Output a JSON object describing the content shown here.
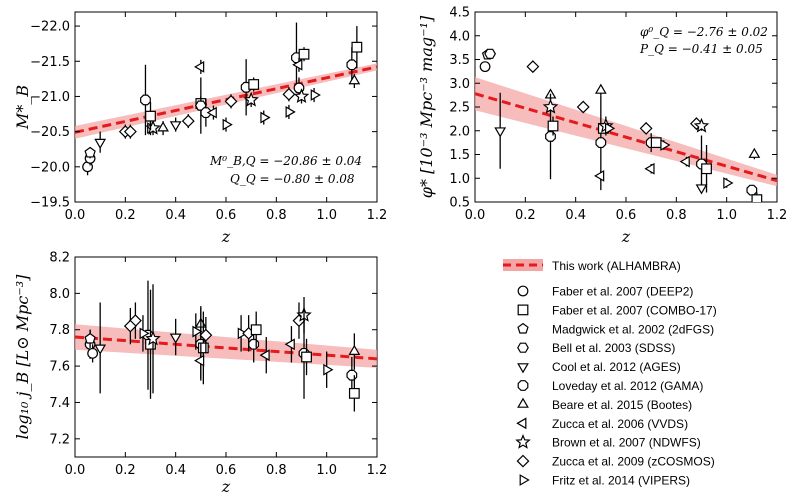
{
  "colors": {
    "fit_line": "#e41a1c",
    "band": "#f4a6a6",
    "markers": "#000000"
  },
  "chart_data": [
    {
      "type": "scatter",
      "xlabel": "z",
      "ylabel": "M*_B",
      "xlim": [
        0.0,
        1.2
      ],
      "ylim": [
        -19.5,
        -22.2
      ],
      "inverted_y": true,
      "x_ticks": [
        "0.0",
        "0.2",
        "0.4",
        "0.6",
        "0.8",
        "1.0",
        "1.2"
      ],
      "y_ticks": [
        "-19.5",
        "-20.0",
        "-20.5",
        "-21.0",
        "-21.5",
        "-22.0"
      ],
      "annotations": [
        "M⁰_B,Q = −20.86 ± 0.04",
        "Q_Q = −0.80 ± 0.08"
      ],
      "fit": {
        "x": [
          0.0,
          1.2
        ],
        "y": [
          -20.49,
          -21.42
        ],
        "band_halfwidth": [
          0.09,
          0.05
        ]
      },
      "points": [
        {
          "s": "faber_deep2",
          "x": 0.05,
          "y": -20.0,
          "e": 0.12
        },
        {
          "s": "faber_deep2",
          "x": 0.06,
          "y": -20.12,
          "e": 0.1
        },
        {
          "s": "madgwick",
          "x": 0.06,
          "y": -20.2,
          "e": 0.08
        },
        {
          "s": "cool",
          "x": 0.1,
          "y": -20.35,
          "e": 0.15
        },
        {
          "s": "zucca2009",
          "x": 0.2,
          "y": -20.5,
          "e": 0.1
        },
        {
          "s": "zucca2009",
          "x": 0.22,
          "y": -20.5,
          "e": 0.1
        },
        {
          "s": "loveday",
          "x": 0.28,
          "y": -20.95,
          "e": 0.5
        },
        {
          "s": "fritz",
          "x": 0.3,
          "y": -20.55,
          "e": 0.1
        },
        {
          "s": "brown",
          "x": 0.31,
          "y": -20.55,
          "e": 0.1
        },
        {
          "s": "faber_combo17",
          "x": 0.3,
          "y": -20.72,
          "e": 0.2
        },
        {
          "s": "beare",
          "x": 0.35,
          "y": -20.55,
          "e": 0.1
        },
        {
          "s": "cool",
          "x": 0.4,
          "y": -20.6,
          "e": 0.1
        },
        {
          "s": "zucca2006",
          "x": 0.5,
          "y": -21.42,
          "e": 0.1
        },
        {
          "s": "faber_combo17",
          "x": 0.5,
          "y": -20.9,
          "e": 0.1
        },
        {
          "s": "bell",
          "x": 0.5,
          "y": -20.87,
          "e": 0.4
        },
        {
          "s": "loveday",
          "x": 0.52,
          "y": -20.77,
          "e": 0.2
        },
        {
          "s": "zucca2009",
          "x": 0.45,
          "y": -20.65,
          "e": 0.1
        },
        {
          "s": "zucca2006",
          "x": 0.55,
          "y": -20.77,
          "e": 0.1
        },
        {
          "s": "fritz",
          "x": 0.6,
          "y": -20.6,
          "e": 0.1
        },
        {
          "s": "loveday",
          "x": 0.68,
          "y": -21.13,
          "e": 0.4
        },
        {
          "s": "faber_combo17",
          "x": 0.71,
          "y": -21.17,
          "e": 0.1
        },
        {
          "s": "zucca2009",
          "x": 0.62,
          "y": -20.93,
          "e": 0.1
        },
        {
          "s": "brown",
          "x": 0.7,
          "y": -20.95,
          "e": 0.1
        },
        {
          "s": "fritz",
          "x": 0.75,
          "y": -20.7,
          "e": 0.1
        },
        {
          "s": "loveday",
          "x": 0.88,
          "y": -21.55,
          "e": 0.5
        },
        {
          "s": "faber_combo17",
          "x": 0.91,
          "y": -21.6,
          "e": 0.1
        },
        {
          "s": "faber_deep2",
          "x": 0.89,
          "y": -21.12,
          "e": 0.15
        },
        {
          "s": "zucca2006",
          "x": 0.89,
          "y": -21.45,
          "e": 0.1
        },
        {
          "s": "zucca2009",
          "x": 0.85,
          "y": -21.03,
          "e": 0.1
        },
        {
          "s": "brown",
          "x": 0.9,
          "y": -21.0,
          "e": 0.1
        },
        {
          "s": "fritz",
          "x": 0.85,
          "y": -20.78,
          "e": 0.1
        },
        {
          "s": "fritz",
          "x": 0.95,
          "y": -21.02,
          "e": 0.1
        },
        {
          "s": "loveday",
          "x": 1.1,
          "y": -21.45,
          "e": 0.25
        },
        {
          "s": "faber_combo17",
          "x": 1.12,
          "y": -21.7,
          "e": 0.3
        },
        {
          "s": "beare",
          "x": 1.11,
          "y": -21.22,
          "e": 0.1
        }
      ]
    },
    {
      "type": "scatter",
      "xlabel": "z",
      "ylabel": "φ* [10⁻³ Mpc⁻³ mag⁻¹]",
      "xlim": [
        0.0,
        1.2
      ],
      "ylim": [
        0.5,
        4.5
      ],
      "x_ticks": [
        "0.0",
        "0.2",
        "0.4",
        "0.6",
        "0.8",
        "1.0",
        "1.2"
      ],
      "y_ticks": [
        "0.5",
        "1.0",
        "1.5",
        "2.0",
        "2.5",
        "3.0",
        "3.5",
        "4.0",
        "4.5"
      ],
      "annotations": [
        "φ⁰_Q = −2.76 ± 0.02",
        "P_Q = −0.41 ± 0.05"
      ],
      "fit": {
        "x": [
          0.0,
          1.2
        ],
        "y": [
          2.78,
          0.95
        ],
        "band_halfwidth": [
          0.35,
          0.12
        ]
      },
      "points": [
        {
          "s": "faber_deep2",
          "x": 0.04,
          "y": 3.35,
          "e": 0.1
        },
        {
          "s": "madgwick",
          "x": 0.05,
          "y": 3.6,
          "e": 0.1
        },
        {
          "s": "bell",
          "x": 0.06,
          "y": 3.62,
          "e": 0.05
        },
        {
          "s": "cool",
          "x": 0.1,
          "y": 2.0,
          "e": 0.8
        },
        {
          "s": "zucca2009",
          "x": 0.23,
          "y": 3.35,
          "e": 0.1
        },
        {
          "s": "beare",
          "x": 0.3,
          "y": 2.75,
          "e": 0.1
        },
        {
          "s": "loveday",
          "x": 0.3,
          "y": 1.88,
          "e": 0.9
        },
        {
          "s": "faber_combo17",
          "x": 0.31,
          "y": 2.1,
          "e": 0.2
        },
        {
          "s": "brown",
          "x": 0.3,
          "y": 2.5,
          "e": 0.1
        },
        {
          "s": "zucca2009",
          "x": 0.43,
          "y": 2.5,
          "e": 0.1
        },
        {
          "s": "beare",
          "x": 0.5,
          "y": 2.85,
          "e": 0.1
        },
        {
          "s": "loveday",
          "x": 0.5,
          "y": 1.75,
          "e": 1.0
        },
        {
          "s": "faber_combo17",
          "x": 0.51,
          "y": 2.05,
          "e": 0.1
        },
        {
          "s": "zucca2006",
          "x": 0.5,
          "y": 1.05,
          "e": 0.1
        },
        {
          "s": "brown",
          "x": 0.52,
          "y": 2.1,
          "e": 0.2
        },
        {
          "s": "fritz",
          "x": 0.53,
          "y": 2.05,
          "e": 0.1
        },
        {
          "s": "loveday",
          "x": 0.7,
          "y": 1.75,
          "e": 0.2
        },
        {
          "s": "zucca2009",
          "x": 0.68,
          "y": 2.05,
          "e": 0.1
        },
        {
          "s": "faber_combo17",
          "x": 0.72,
          "y": 1.75,
          "e": 0.1
        },
        {
          "s": "zucca2006",
          "x": 0.7,
          "y": 1.2,
          "e": 0.1
        },
        {
          "s": "fritz",
          "x": 0.75,
          "y": 1.7,
          "e": 0.1
        },
        {
          "s": "zucca2009",
          "x": 0.88,
          "y": 2.15,
          "e": 0.1
        },
        {
          "s": "brown",
          "x": 0.9,
          "y": 2.1,
          "e": 0.1
        },
        {
          "s": "loveday",
          "x": 0.9,
          "y": 1.3,
          "e": 0.6
        },
        {
          "s": "faber_combo17",
          "x": 0.92,
          "y": 1.2,
          "e": 0.5
        },
        {
          "s": "zucca2006",
          "x": 0.84,
          "y": 1.35,
          "e": 0.1
        },
        {
          "s": "cool",
          "x": 0.9,
          "y": 0.8,
          "e": 0.1
        },
        {
          "s": "loveday",
          "x": 1.1,
          "y": 0.75,
          "e": 0.1
        },
        {
          "s": "faber_combo17",
          "x": 1.12,
          "y": 0.55,
          "e": 0.15
        },
        {
          "s": "beare",
          "x": 1.11,
          "y": 1.5,
          "e": 0.1
        },
        {
          "s": "fritz",
          "x": 1.0,
          "y": 0.9,
          "e": 0.1
        }
      ]
    },
    {
      "type": "scatter",
      "xlabel": "z",
      "ylabel": "log₁₀ j_B [L⊙ Mpc⁻³]",
      "xlim": [
        0.0,
        1.2
      ],
      "ylim": [
        7.1,
        8.2
      ],
      "x_ticks": [
        "0.0",
        "0.2",
        "0.4",
        "0.6",
        "0.8",
        "1.0",
        "1.2"
      ],
      "y_ticks": [
        "7.2",
        "7.4",
        "7.6",
        "7.8",
        "8.0",
        "8.2"
      ],
      "fit": {
        "x": [
          0.0,
          1.2
        ],
        "y": [
          7.76,
          7.64
        ],
        "band_halfwidth": [
          0.07,
          0.05
        ]
      },
      "points": [
        {
          "s": "faber_deep2",
          "x": 0.06,
          "y": 7.72,
          "e": 0.08
        },
        {
          "s": "faber_deep2",
          "x": 0.07,
          "y": 7.67,
          "e": 0.05
        },
        {
          "s": "madgwick",
          "x": 0.06,
          "y": 7.75,
          "e": 0.05
        },
        {
          "s": "cool",
          "x": 0.1,
          "y": 7.7,
          "e": 0.25
        },
        {
          "s": "zucca2009",
          "x": 0.24,
          "y": 7.85,
          "e": 0.1
        },
        {
          "s": "zucca2009",
          "x": 0.22,
          "y": 7.82,
          "e": 0.1
        },
        {
          "s": "loveday",
          "x": 0.29,
          "y": 7.77,
          "e": 0.3
        },
        {
          "s": "faber_combo17",
          "x": 0.3,
          "y": 7.72,
          "e": 0.3
        },
        {
          "s": "brown",
          "x": 0.31,
          "y": 7.75,
          "e": 0.3
        },
        {
          "s": "fritz",
          "x": 0.27,
          "y": 7.78,
          "e": 0.1
        },
        {
          "s": "cool",
          "x": 0.4,
          "y": 7.76,
          "e": 0.1
        },
        {
          "s": "beare",
          "x": 0.5,
          "y": 7.83,
          "e": 0.1
        },
        {
          "s": "loveday",
          "x": 0.5,
          "y": 7.72,
          "e": 0.2
        },
        {
          "s": "faber_combo17",
          "x": 0.51,
          "y": 7.7,
          "e": 0.2
        },
        {
          "s": "zucca2006",
          "x": 0.5,
          "y": 7.63,
          "e": 0.1
        },
        {
          "s": "zucca2009",
          "x": 0.52,
          "y": 7.77,
          "e": 0.1
        },
        {
          "s": "fritz",
          "x": 0.48,
          "y": 7.79,
          "e": 0.1
        },
        {
          "s": "fritz",
          "x": 0.66,
          "y": 7.78,
          "e": 0.1
        },
        {
          "s": "zucca2009",
          "x": 0.69,
          "y": 7.78,
          "e": 0.1
        },
        {
          "s": "loveday",
          "x": 0.71,
          "y": 7.72,
          "e": 0.1
        },
        {
          "s": "faber_combo17",
          "x": 0.72,
          "y": 7.8,
          "e": 0.1
        },
        {
          "s": "zucca2006",
          "x": 0.76,
          "y": 7.66,
          "e": 0.1
        },
        {
          "s": "zucca2009",
          "x": 0.89,
          "y": 7.85,
          "e": 0.1
        },
        {
          "s": "brown",
          "x": 0.91,
          "y": 7.88,
          "e": 0.1
        },
        {
          "s": "loveday",
          "x": 0.91,
          "y": 7.67,
          "e": 0.25
        },
        {
          "s": "faber_combo17",
          "x": 0.92,
          "y": 7.65,
          "e": 0.1
        },
        {
          "s": "zucca2006",
          "x": 0.86,
          "y": 7.72,
          "e": 0.1
        },
        {
          "s": "fritz",
          "x": 1.0,
          "y": 7.58,
          "e": 0.1
        },
        {
          "s": "loveday",
          "x": 1.1,
          "y": 7.55,
          "e": 0.1
        },
        {
          "s": "faber_combo17",
          "x": 1.11,
          "y": 7.45,
          "e": 0.1
        },
        {
          "s": "beare",
          "x": 1.11,
          "y": 7.68,
          "e": 0.1
        }
      ]
    }
  ],
  "legend": {
    "fit_label": "This work (ALHAMBRA)",
    "items": [
      {
        "key": "faber_deep2",
        "marker": "circle",
        "label": "Faber et al. 2007 (DEEP2)"
      },
      {
        "key": "faber_combo17",
        "marker": "square",
        "label": "Faber et al. 2007 (COMBO-17)"
      },
      {
        "key": "madgwick",
        "marker": "pentagon",
        "label": "Madgwick et al. 2002 (2dFGS)"
      },
      {
        "key": "bell",
        "marker": "hexagon",
        "label": "Bell et al. 2003 (SDSS)"
      },
      {
        "key": "cool",
        "marker": "triangle-down",
        "label": "Cool et al. 2012 (AGES)"
      },
      {
        "key": "loveday",
        "marker": "octagon",
        "label": "Loveday et al. 2012 (GAMA)"
      },
      {
        "key": "beare",
        "marker": "triangle-up",
        "label": "Beare et al. 2015 (Bootes)"
      },
      {
        "key": "zucca2006",
        "marker": "triangle-left",
        "label": "Zucca et al. 2006 (VVDS)"
      },
      {
        "key": "brown",
        "marker": "star",
        "label": "Brown et al. 2007 (NDWFS)"
      },
      {
        "key": "zucca2009",
        "marker": "diamond",
        "label": "Zucca et al. 2009 (zCOSMOS)"
      },
      {
        "key": "fritz",
        "marker": "triangle-right",
        "label": "Fritz et al. 2014 (VIPERS)"
      }
    ]
  }
}
